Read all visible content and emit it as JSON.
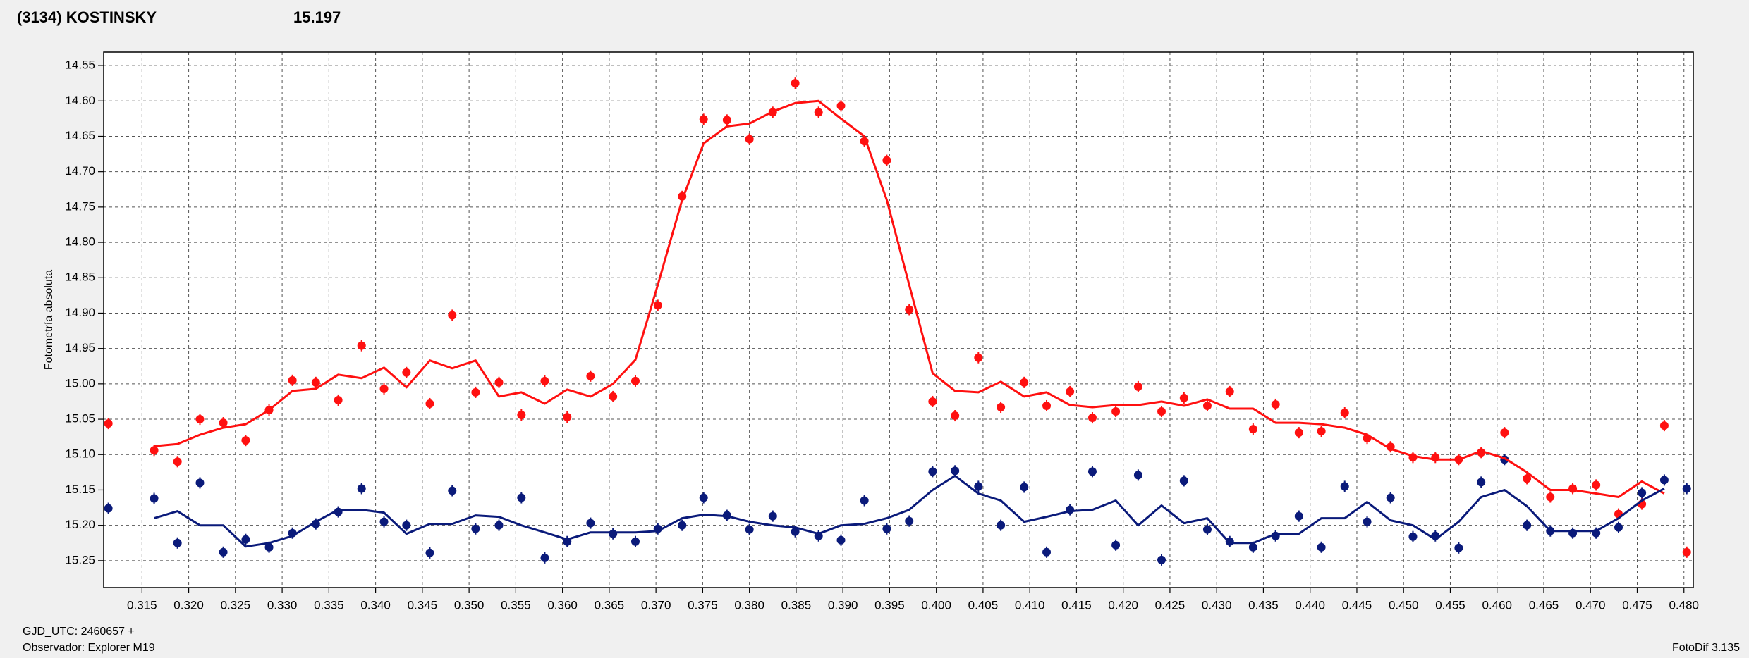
{
  "chart_data": {
    "type": "scatter",
    "title": "(3134) KOSTINSKY",
    "title_color": "#ff2020",
    "subtitle": "15.197",
    "subtitle_color": "#1a1a8c",
    "ylabel": "Fotometría absoluta",
    "xlabel": "GJD_UTC: 2460657 +",
    "notes": [
      "Observador: Explorer M19",
      "FotoDif 3.135"
    ],
    "grid": true,
    "xlim": [
      0.3109,
      0.481
    ],
    "ylim": [
      15.288,
      14.531
    ],
    "xticks": [
      0.315,
      {
        "value": 0.32,
        "label": "0.320"
      },
      0.325,
      {
        "value": 0.33,
        "label": "0.330"
      },
      0.335,
      {
        "value": 0.34,
        "label": "0.340"
      },
      0.345,
      {
        "value": 0.35,
        "label": "0.350"
      },
      0.355,
      {
        "value": 0.36,
        "label": "0.360"
      },
      0.365,
      {
        "value": 0.37,
        "label": "0.370"
      },
      0.375,
      {
        "value": 0.38,
        "label": "0.380"
      },
      0.385,
      {
        "value": 0.39,
        "label": "0.390"
      },
      0.395,
      {
        "value": 0.4,
        "label": "0.400"
      },
      0.405,
      {
        "value": 0.41,
        "label": "0.410"
      },
      0.415,
      {
        "value": 0.42,
        "label": "0.420"
      },
      0.425,
      {
        "value": 0.43,
        "label": "0.430"
      },
      0.435,
      {
        "value": 0.44,
        "label": "0.440"
      },
      0.445,
      {
        "value": 0.45,
        "label": "0.450"
      },
      0.455,
      {
        "value": 0.46,
        "label": "0.460"
      },
      0.465,
      {
        "value": 0.47,
        "label": "0.470"
      },
      0.475,
      {
        "value": 0.48,
        "label": "0.480"
      }
    ],
    "yticks": [
      14.55,
      {
        "value": 14.6,
        "label": "14.60"
      },
      14.65,
      {
        "value": 14.7,
        "label": "14.70"
      },
      14.75,
      {
        "value": 14.8,
        "label": "14.80"
      },
      14.85,
      {
        "value": 14.9,
        "label": "14.90"
      },
      14.95,
      {
        "value": 15.0,
        "label": "15.00"
      },
      15.05,
      {
        "value": 15.1,
        "label": "15.10"
      },
      15.15,
      {
        "value": 15.2,
        "label": "15.20"
      },
      15.25
    ],
    "x": [
      0.3114,
      0.3163,
      0.3188,
      0.3212,
      0.3237,
      0.3261,
      0.3286,
      0.3311,
      0.3336,
      0.336,
      0.3385,
      0.3409,
      0.3433,
      0.3458,
      0.3482,
      0.3507,
      0.3532,
      0.3556,
      0.3581,
      0.3605,
      0.363,
      0.3654,
      0.3678,
      0.3702,
      0.3728,
      0.3751,
      0.3776,
      0.38,
      0.3825,
      0.3849,
      0.3874,
      0.3898,
      0.3923,
      0.3947,
      0.3971,
      0.3996,
      0.402,
      0.4045,
      0.4069,
      0.4094,
      0.4118,
      0.4143,
      0.4167,
      0.4192,
      0.4216,
      0.4241,
      0.4265,
      0.429,
      0.4314,
      0.4339,
      0.4363,
      0.4388,
      0.4412,
      0.4437,
      0.4461,
      0.4486,
      0.451,
      0.4534,
      0.4559,
      0.4583,
      0.4608,
      0.4632,
      0.4657,
      0.4681,
      0.4706,
      0.473,
      0.4755,
      0.4779,
      0.4803
    ],
    "series": [
      {
        "style": "points",
        "color": "#ff1010",
        "error": 0.008,
        "values": [
          15.056,
          15.094,
          15.11,
          15.05,
          15.055,
          15.08,
          15.037,
          14.995,
          14.998,
          15.023,
          14.946,
          15.007,
          14.984,
          15.028,
          14.903,
          15.012,
          14.998,
          15.044,
          14.996,
          15.047,
          14.989,
          15.018,
          14.996,
          14.889,
          14.735,
          14.626,
          14.627,
          14.654,
          14.616,
          14.575,
          14.616,
          14.607,
          14.657,
          14.684,
          14.895,
          15.025,
          15.045,
          14.963,
          15.033,
          14.998,
          15.031,
          15.011,
          15.048,
          15.039,
          15.004,
          15.039,
          15.02,
          15.031,
          15.011,
          15.064,
          15.029,
          15.069,
          15.067,
          15.041,
          15.077,
          15.089,
          15.104,
          15.104,
          15.107,
          15.097,
          15.069,
          15.134,
          15.16,
          15.148,
          15.143,
          15.184,
          15.17,
          15.059,
          15.238
        ]
      },
      {
        "style": "points",
        "color": "#0a1a7a",
        "error": 0.008,
        "values": [
          15.176,
          15.162,
          15.225,
          15.14,
          15.238,
          15.22,
          15.231,
          15.211,
          15.198,
          15.181,
          15.148,
          15.195,
          15.2,
          15.239,
          15.151,
          15.205,
          15.2,
          15.161,
          15.246,
          15.223,
          15.197,
          15.212,
          15.223,
          15.205,
          15.2,
          15.161,
          15.186,
          15.206,
          15.187,
          15.209,
          15.215,
          15.221,
          15.165,
          15.205,
          15.194,
          15.124,
          15.123,
          15.145,
          15.2,
          15.146,
          15.238,
          15.178,
          15.124,
          15.228,
          15.129,
          15.249,
          15.137,
          15.206,
          15.223,
          15.231,
          15.215,
          15.187,
          15.231,
          15.145,
          15.195,
          15.161,
          15.216,
          15.215,
          15.232,
          15.139,
          15.107,
          15.2,
          15.208,
          15.211,
          15.211,
          15.203,
          15.154,
          15.136,
          15.148
        ]
      },
      {
        "style": "line",
        "color": "#ff1010",
        "values": [
          null,
          15.088,
          15.085,
          15.072,
          15.062,
          15.057,
          15.037,
          15.01,
          15.007,
          14.987,
          14.992,
          14.977,
          15.005,
          14.967,
          14.978,
          14.967,
          15.018,
          15.012,
          15.028,
          15.008,
          15.018,
          15.0,
          14.966,
          14.86,
          14.74,
          14.66,
          14.636,
          14.632,
          14.615,
          14.603,
          14.6,
          14.625,
          14.65,
          14.74,
          14.86,
          14.985,
          15.01,
          15.012,
          14.997,
          15.018,
          15.012,
          15.03,
          15.033,
          15.03,
          15.03,
          15.025,
          15.031,
          15.022,
          15.035,
          15.035,
          15.055,
          15.055,
          15.057,
          15.062,
          15.072,
          15.092,
          15.102,
          15.107,
          15.107,
          15.095,
          15.105,
          15.125,
          15.15,
          15.15,
          15.155,
          15.16,
          15.138,
          15.155,
          null
        ]
      },
      {
        "style": "line",
        "color": "#0a1a7a",
        "values": [
          null,
          15.19,
          15.18,
          15.2,
          15.2,
          15.23,
          15.225,
          15.215,
          15.195,
          15.178,
          15.178,
          15.182,
          15.212,
          15.198,
          15.198,
          15.186,
          15.188,
          15.2,
          15.21,
          15.22,
          15.21,
          15.21,
          15.21,
          15.208,
          15.19,
          15.185,
          15.187,
          15.195,
          15.2,
          15.203,
          15.212,
          15.2,
          15.198,
          15.19,
          15.178,
          15.15,
          15.13,
          15.155,
          15.165,
          15.195,
          15.188,
          15.18,
          15.178,
          15.165,
          15.2,
          15.172,
          15.197,
          15.19,
          15.225,
          15.225,
          15.212,
          15.212,
          15.19,
          15.19,
          15.167,
          15.193,
          15.2,
          15.22,
          15.195,
          15.16,
          15.15,
          15.173,
          15.208,
          15.208,
          15.208,
          15.19,
          15.165,
          15.148,
          null
        ]
      }
    ]
  }
}
